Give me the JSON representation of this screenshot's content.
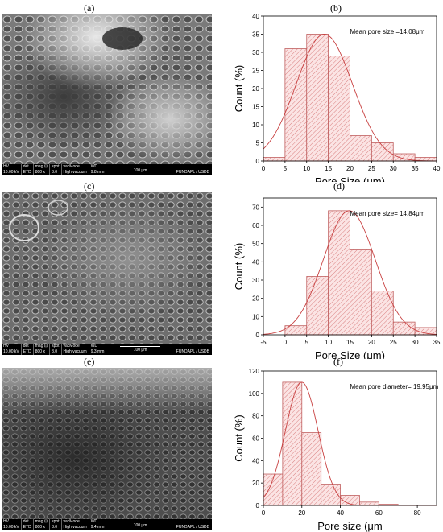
{
  "panels": {
    "a": "(a)",
    "b": "(b)",
    "c": "(c)",
    "d": "(d)",
    "e": "(e)",
    "f": "(f)"
  },
  "sem_images": [
    {
      "hv": "HV",
      "hv_val": "10.00 kV",
      "det": "det",
      "det_val": "ETD",
      "mag": "mag ⊡",
      "mag_val": "800 x",
      "spot": "spot",
      "spot_val": "3.0",
      "vac": "vacMode",
      "vac_val": "High vacuum",
      "wd": "WD",
      "wd_val": "9.8 mm",
      "scale": "100 μm",
      "lab": "FUNDAPL / USDB"
    },
    {
      "hv": "HV",
      "hv_val": "10.00 kV",
      "det": "det",
      "det_val": "ETD",
      "mag": "mag ⊡",
      "mag_val": "800 x",
      "spot": "spot",
      "spot_val": "3.0",
      "vac": "vacMode",
      "vac_val": "High vacuum",
      "wd": "WD",
      "wd_val": "9.3 mm",
      "scale": "100 μm",
      "lab": "FUNDAPL / USDB"
    },
    {
      "hv": "HV",
      "hv_val": "10.00 kV",
      "det": "det",
      "det_val": "ETD",
      "mag": "mag ⊡",
      "mag_val": "800 x",
      "spot": "spot",
      "spot_val": "3.0",
      "vac": "vacMode",
      "vac_val": "High vacuum",
      "wd": "WD",
      "wd_val": "9.4 mm",
      "scale": "100 μm",
      "lab": "FUNDAPL / USDB"
    }
  ],
  "chart_data": [
    {
      "type": "bar",
      "id": "b",
      "annotation": "Mean pore size =14.08μm",
      "xlabel": "Pore Size (μm)",
      "ylabel": "Count (%)",
      "xlim": [
        0,
        40
      ],
      "ylim": [
        0,
        40
      ],
      "xticks": [
        0,
        5,
        10,
        15,
        20,
        25,
        30,
        35,
        40
      ],
      "yticks": [
        0,
        5,
        10,
        15,
        20,
        25,
        30,
        35,
        40
      ],
      "bin_edges": [
        0,
        5,
        10,
        15,
        20,
        25,
        30,
        35,
        40
      ],
      "values": [
        1,
        31,
        35,
        29,
        7,
        5,
        2,
        1
      ],
      "fit": {
        "mean": 14.08,
        "sd": 6.5,
        "peak": 35
      },
      "hatch": true,
      "grid": false
    },
    {
      "type": "bar",
      "id": "d",
      "annotation": "Mean pore size= 14.84μm",
      "xlabel": "Pore Size (μm)",
      "ylabel": "Count (%)",
      "xlim": [
        -5,
        35
      ],
      "ylim": [
        0,
        75
      ],
      "xticks": [
        -5,
        0,
        5,
        10,
        15,
        20,
        25,
        30,
        35
      ],
      "yticks": [
        0,
        10,
        20,
        30,
        40,
        50,
        60,
        70
      ],
      "bin_edges": [
        0,
        5,
        10,
        15,
        20,
        25,
        30,
        35
      ],
      "values": [
        5,
        32,
        68,
        47,
        24,
        7,
        4
      ],
      "fit": {
        "mean": 14.84,
        "sd": 6.0,
        "peak": 68
      },
      "hatch": true,
      "grid": false
    },
    {
      "type": "bar",
      "id": "f",
      "annotation": "Mean pore diameter= 19.95μm",
      "xlabel": "Pore size (μm",
      "ylabel": "Count (%)",
      "xlim": [
        0,
        90
      ],
      "ylim": [
        0,
        120
      ],
      "xticks": [
        0,
        20,
        40,
        60,
        80
      ],
      "yticks": [
        0,
        20,
        40,
        60,
        80,
        100,
        120
      ],
      "bin_edges": [
        0,
        10,
        20,
        30,
        40,
        50,
        60,
        70,
        80
      ],
      "values": [
        28,
        110,
        65,
        19,
        9,
        3,
        1,
        0
      ],
      "fit": {
        "mean": 19.95,
        "sd": 8.5,
        "peak": 110
      },
      "hatch": true,
      "grid": false
    }
  ],
  "colors": {
    "bar_fill": "#fbe4e4",
    "hatch": "#d98080",
    "bar_edge": "#c06060",
    "fit_line": "#c84040",
    "axis": "#000000"
  }
}
